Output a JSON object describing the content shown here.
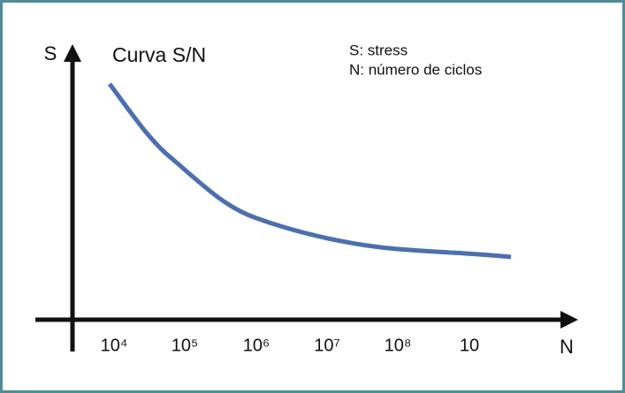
{
  "title": "Curva S/N",
  "axes": {
    "y_label": "S",
    "x_label": "N",
    "x_tick_labels": [
      "10⁴",
      "10⁵",
      "10⁶",
      "10⁷",
      "10⁸",
      "10"
    ]
  },
  "legend": [
    "S: stress",
    "N: número de ciclos"
  ]
}
